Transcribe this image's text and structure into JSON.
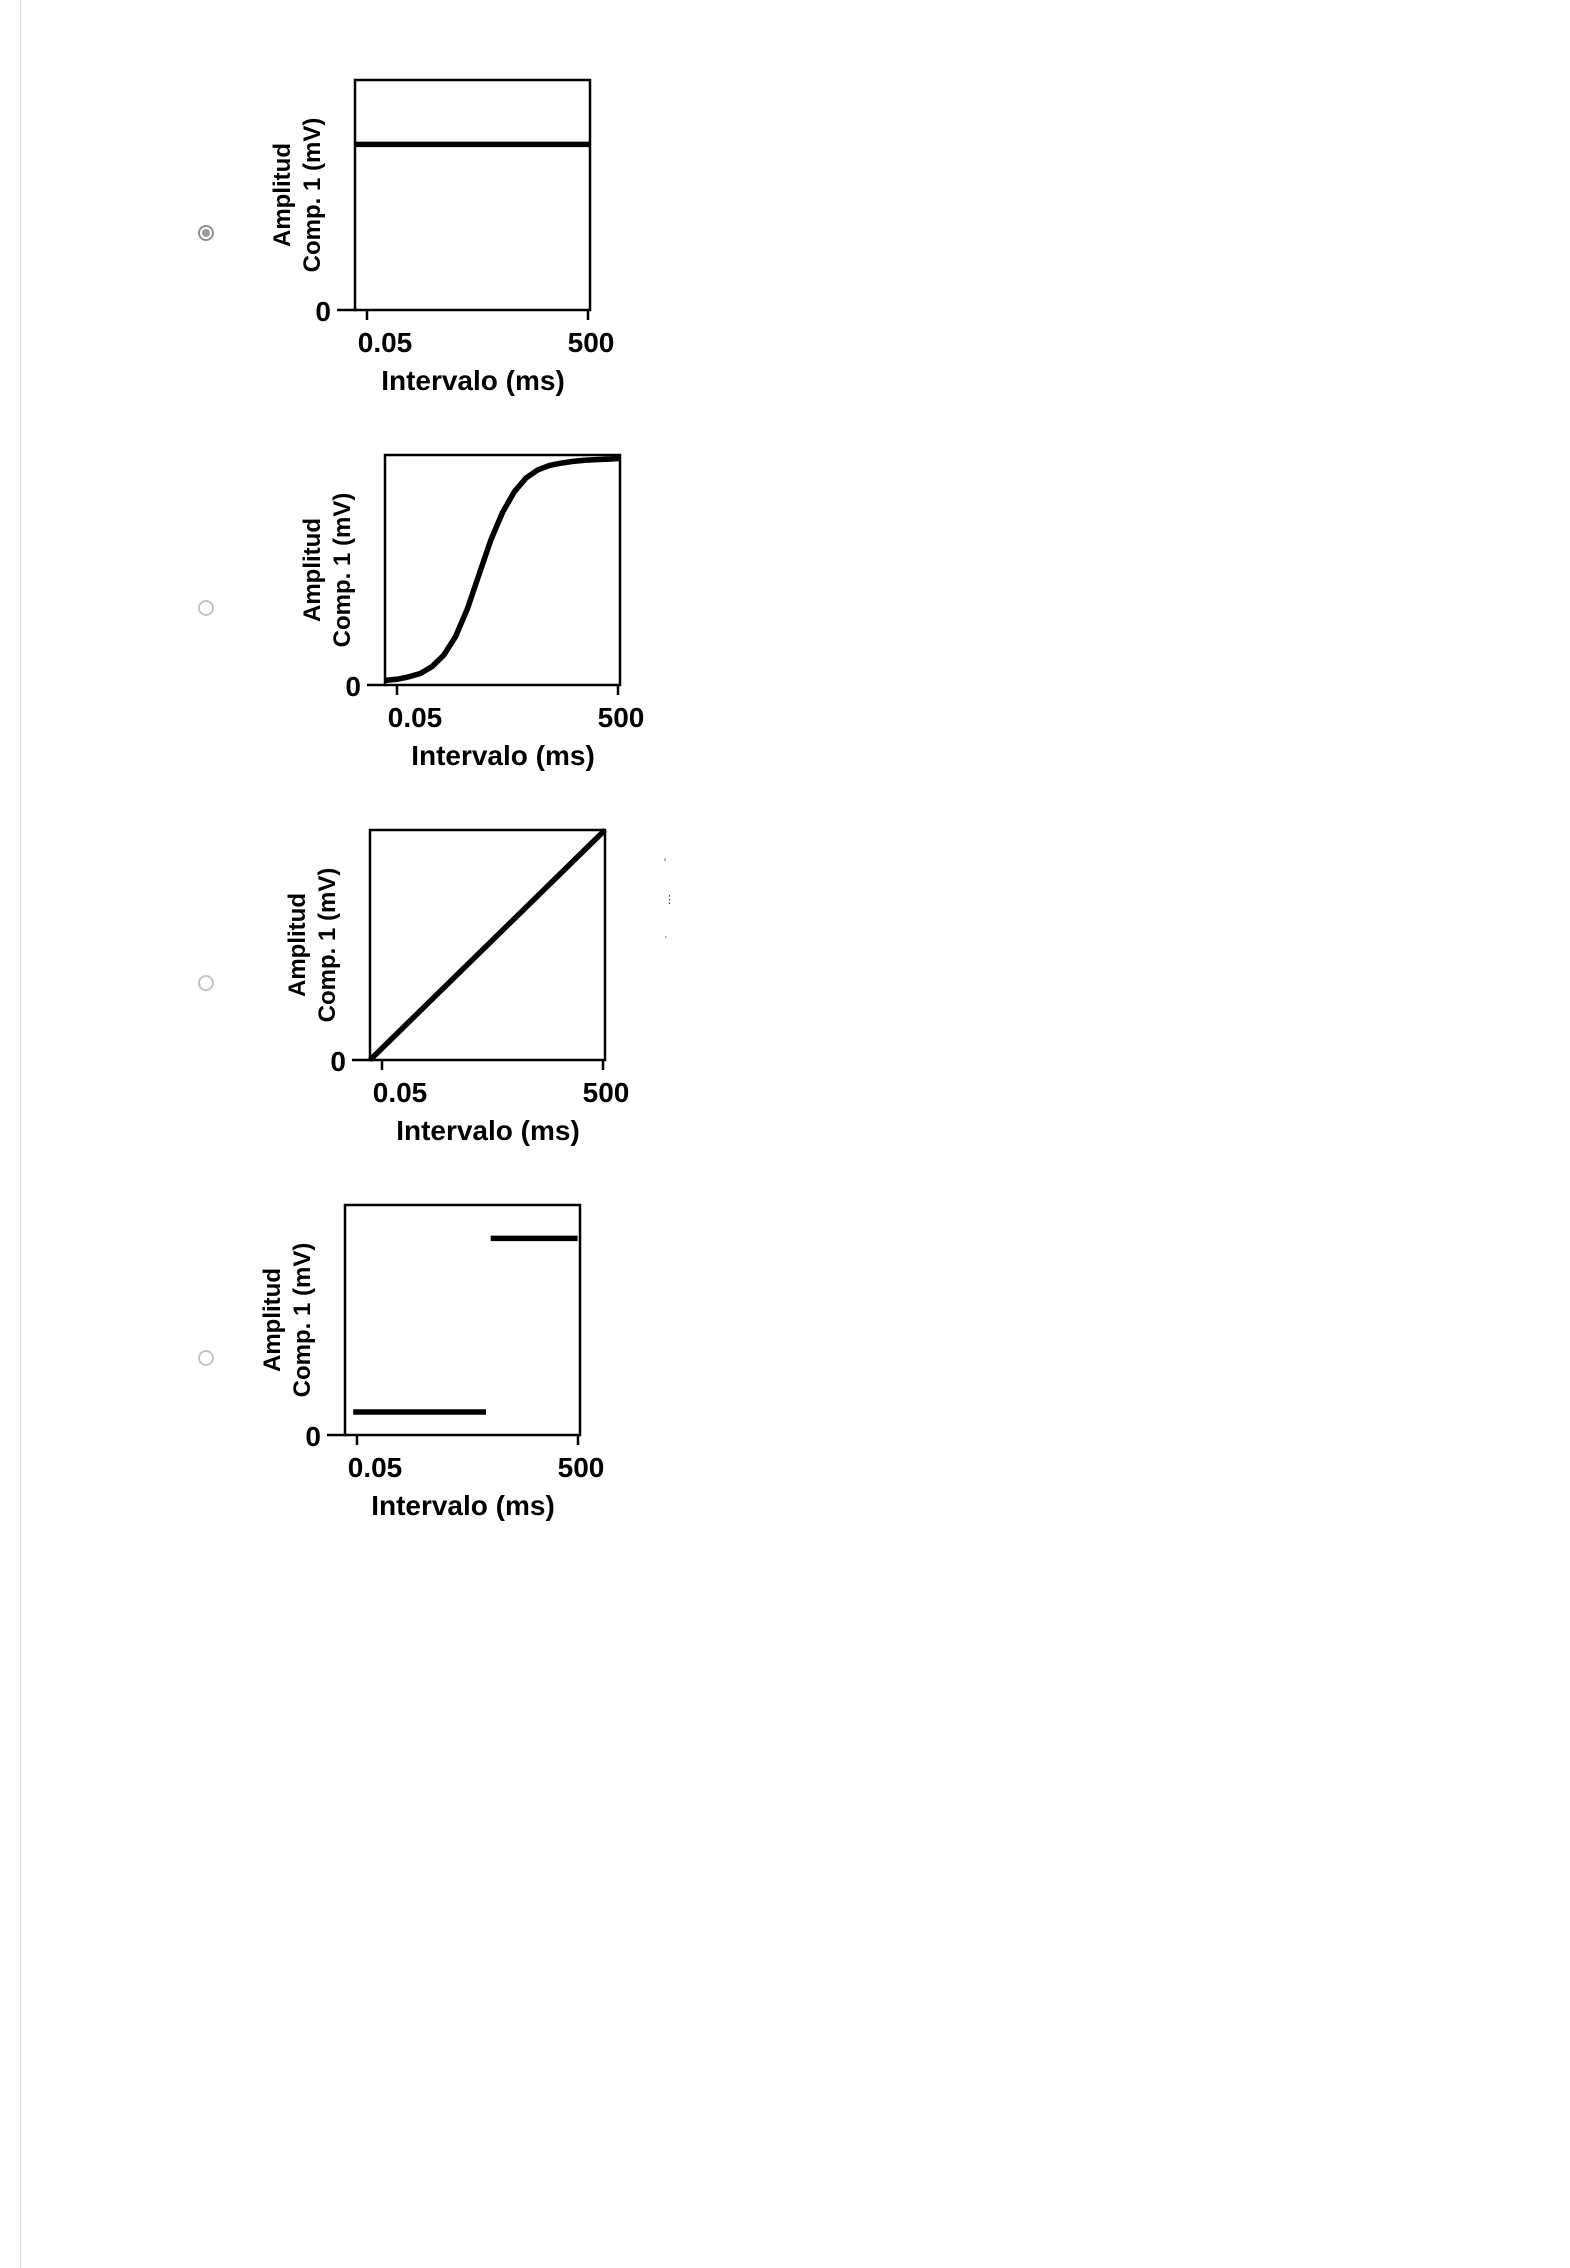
{
  "page": {
    "background": "#ffffff",
    "left_border_color": "#d6d6d6"
  },
  "artifact": {
    "marks": [
      "'",
      "⋮",
      "·"
    ]
  },
  "options": [
    {
      "selected": true,
      "chart": {
        "type": "line",
        "description": "constant high amplitude across all intervals (flat line)",
        "ylabel_line1": "Amplitud",
        "ylabel_line2": "Comp. 1 (mV)",
        "y_origin_label": "0",
        "x_tick_left": "0.05",
        "x_tick_right": "500",
        "xlabel": "Intervalo (ms)",
        "x_range_ms": [
          0.05,
          500
        ],
        "segments": [
          [
            [
              0,
              0.72
            ],
            [
              1,
              0.72
            ]
          ]
        ]
      }
    },
    {
      "selected": false,
      "chart": {
        "type": "line",
        "description": "sigmoidal increase of amplitude with interval, saturating at long intervals",
        "ylabel_line1": "Amplitud",
        "ylabel_line2": "Comp. 1 (mV)",
        "y_origin_label": "0",
        "x_tick_left": "0.05",
        "x_tick_right": "500",
        "xlabel": "Intervalo (ms)",
        "x_range_ms": [
          0.05,
          500
        ],
        "segments": [
          [
            [
              0,
              0.02
            ],
            [
              0.05,
              0.025
            ],
            [
              0.1,
              0.035
            ],
            [
              0.15,
              0.05
            ],
            [
              0.2,
              0.08
            ],
            [
              0.25,
              0.13
            ],
            [
              0.3,
              0.21
            ],
            [
              0.35,
              0.33
            ],
            [
              0.4,
              0.48
            ],
            [
              0.45,
              0.63
            ],
            [
              0.5,
              0.75
            ],
            [
              0.55,
              0.84
            ],
            [
              0.6,
              0.9
            ],
            [
              0.65,
              0.935
            ],
            [
              0.7,
              0.955
            ],
            [
              0.75,
              0.965
            ],
            [
              0.8,
              0.972
            ],
            [
              0.85,
              0.977
            ],
            [
              0.9,
              0.98
            ],
            [
              0.95,
              0.982
            ],
            [
              1,
              0.985
            ]
          ]
        ]
      }
    },
    {
      "selected": false,
      "chart": {
        "type": "line",
        "description": "linear increase of amplitude with interval (straight diagonal)",
        "ylabel_line1": "Amplitud",
        "ylabel_line2": "Comp. 1 (mV)",
        "y_origin_label": "0",
        "x_tick_left": "0.05",
        "x_tick_right": "500",
        "xlabel": "Intervalo (ms)",
        "x_range_ms": [
          0.05,
          500
        ],
        "segments": [
          [
            [
              0,
              0
            ],
            [
              1,
              1
            ]
          ]
        ]
      }
    },
    {
      "selected": false,
      "chart": {
        "type": "line",
        "description": "step function: low amplitude at short intervals, abrupt jump to high amplitude at long intervals",
        "ylabel_line1": "Amplitud",
        "ylabel_line2": "Comp. 1 (mV)",
        "y_origin_label": "0",
        "x_tick_left": "0.05",
        "x_tick_right": "500",
        "xlabel": "Intervalo (ms)",
        "x_range_ms": [
          0.05,
          500
        ],
        "segments": [
          [
            [
              0.035,
              0.1
            ],
            [
              0.6,
              0.1
            ]
          ],
          [
            [
              0.62,
              0.855
            ],
            [
              0.99,
              0.855
            ]
          ]
        ]
      }
    }
  ]
}
